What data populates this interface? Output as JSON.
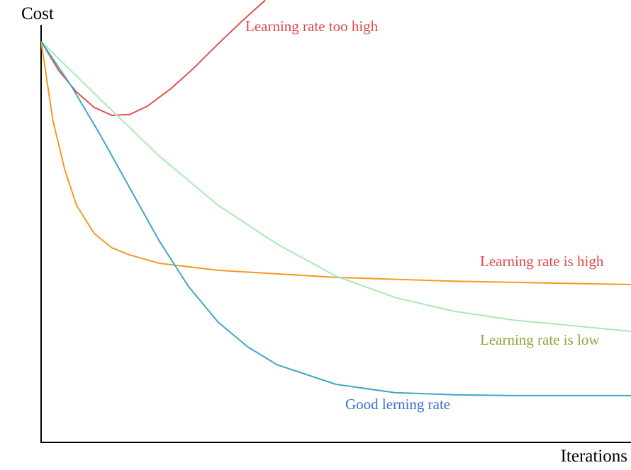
{
  "chart_data": {
    "type": "line",
    "x_label": "Iterations",
    "y_label": "Cost",
    "xlim": [
      0,
      100
    ],
    "ylim": [
      0,
      100
    ],
    "series": [
      {
        "name": "Learning rate too high",
        "color": "#e05252",
        "label_color": "#e04848",
        "x": [
          0,
          3,
          6,
          9,
          12,
          15,
          18,
          22,
          26,
          30,
          34,
          38
        ],
        "values": [
          96,
          89,
          83.9,
          80.2,
          78.3,
          78.5,
          80.5,
          84.7,
          89.8,
          95.4,
          100.8,
          105.9
        ]
      },
      {
        "name": "Learning rate is high",
        "color": "#f29a22",
        "label_color": "#e04848",
        "x": [
          0,
          2,
          4,
          6,
          9,
          12,
          15,
          20,
          30,
          50,
          70,
          100
        ],
        "values": [
          96,
          77.1,
          65.3,
          56.8,
          50,
          46.6,
          44.9,
          42.9,
          41.2,
          39.5,
          38.6,
          37.8
        ]
      },
      {
        "name": "Learning rate is low",
        "color": "#a9eab4",
        "label_color": "#8aa83e",
        "x": [
          0,
          10,
          20,
          30,
          40,
          50,
          60,
          70,
          80,
          100
        ],
        "values": [
          96,
          82.2,
          68.6,
          56.8,
          47.5,
          39.8,
          34.7,
          31.4,
          29.3,
          26.6
        ]
      },
      {
        "name": "Good lerning rate",
        "color": "#3aa9c6",
        "label_color": "#3a6fd2",
        "x": [
          0,
          5,
          10,
          15,
          20,
          25,
          30,
          35,
          40,
          50,
          60,
          70,
          80,
          100
        ],
        "values": [
          96,
          85.6,
          73.7,
          61,
          48.3,
          37.3,
          28.8,
          22.9,
          18.6,
          13.9,
          11.9,
          11.4,
          11.2,
          11.2
        ]
      }
    ]
  }
}
